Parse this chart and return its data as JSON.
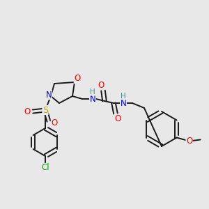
{
  "background_color": "#e8e8e8",
  "bond_color": "#1a1a1a",
  "atom_colors": {
    "O": "#ff0000",
    "N": "#0000cc",
    "S": "#ccaa00",
    "Cl": "#00aa00",
    "H": "#4a8a8a",
    "C": "#1a1a1a"
  },
  "figsize": [
    3.0,
    3.0
  ],
  "dpi": 100
}
